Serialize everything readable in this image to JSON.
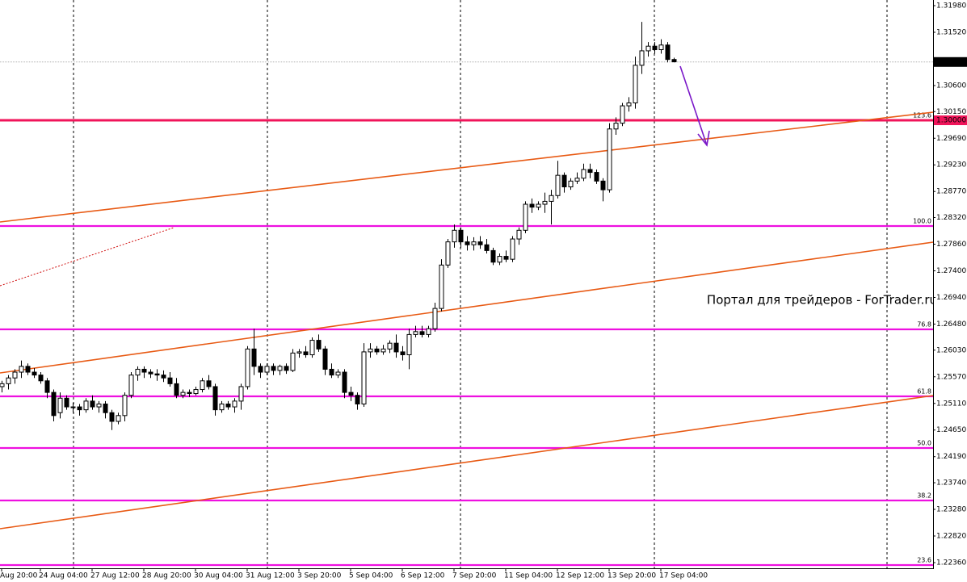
{
  "chart_data": {
    "type": "candlestick",
    "ylim": [
      1.2236,
      1.3198
    ],
    "yticks": [
      {
        "value": 1.3198,
        "label": "1.31980"
      },
      {
        "value": 1.3152,
        "label": "1.31520"
      },
      {
        "value": 1.306,
        "label": "1.30600"
      },
      {
        "value": 1.3015,
        "label": "1.30150"
      },
      {
        "value": 1.2969,
        "label": "1.29690"
      },
      {
        "value": 1.2923,
        "label": "1.29230"
      },
      {
        "value": 1.2877,
        "label": "1.28770"
      },
      {
        "value": 1.2832,
        "label": "1.28320"
      },
      {
        "value": 1.2786,
        "label": "1.27860"
      },
      {
        "value": 1.274,
        "label": "1.27400"
      },
      {
        "value": 1.2694,
        "label": "1.26940"
      },
      {
        "value": 1.2648,
        "label": "1.26480"
      },
      {
        "value": 1.2603,
        "label": "1.26030"
      },
      {
        "value": 1.2557,
        "label": "1.25570"
      },
      {
        "value": 1.2511,
        "label": "1.25110"
      },
      {
        "value": 1.2465,
        "label": "1.24650"
      },
      {
        "value": 1.2419,
        "label": "1.24190"
      },
      {
        "value": 1.2374,
        "label": "1.23740"
      },
      {
        "value": 1.2328,
        "label": "1.23280"
      },
      {
        "value": 1.2282,
        "label": "1.22820"
      },
      {
        "value": 1.2236,
        "label": "1.22360"
      }
    ],
    "xticks": [
      {
        "value": 0,
        "label": "Aug 20:00"
      },
      {
        "value": 6,
        "label": "24 Aug 04:00"
      },
      {
        "value": 14,
        "label": "27 Aug 12:00"
      },
      {
        "value": 22,
        "label": "28 Aug 20:00"
      },
      {
        "value": 30,
        "label": "30 Aug 04:00"
      },
      {
        "value": 38,
        "label": "31 Aug 12:00"
      },
      {
        "value": 46,
        "label": "3 Sep 20:00"
      },
      {
        "value": 54,
        "label": "5 Sep 04:00"
      },
      {
        "value": 62,
        "label": "6 Sep 12:00"
      },
      {
        "value": 70,
        "label": "7 Sep 20:00"
      },
      {
        "value": 78,
        "label": "11 Sep 04:00"
      },
      {
        "value": 86,
        "label": "12 Sep 12:00"
      },
      {
        "value": 94,
        "label": "13 Sep 20:00"
      },
      {
        "value": 102,
        "label": "17 Sep 04:00"
      }
    ],
    "last_price": {
      "value": 1.31007,
      "label": "1.31007"
    },
    "levels": [
      {
        "name": "123.6",
        "value": 1.3,
        "color": "#f0145a",
        "price_label": "1.30000"
      },
      {
        "name": "100.0",
        "value": 1.28174,
        "color": "#ee10e0"
      },
      {
        "name": "76.8",
        "value": 1.26389,
        "color": "#ee10e0"
      },
      {
        "name": "61.8",
        "value": 1.25232,
        "color": "#ee10e0"
      },
      {
        "name": "50.0",
        "value": 1.2434,
        "color": "#ee10e0"
      },
      {
        "name": "38.2",
        "value": 1.23434,
        "color": "#ee10e0"
      },
      {
        "name": "23.6",
        "value": 1.22318,
        "color": "#ee10e0"
      }
    ],
    "watermark": "Портал для трейдеров - ForTrader.ru",
    "ohlc": [
      [
        1.254,
        1.255,
        1.253,
        1.2545
      ],
      [
        1.2545,
        1.256,
        1.2535,
        1.2555
      ],
      [
        1.2555,
        1.257,
        1.2545,
        1.2565
      ],
      [
        1.2565,
        1.2585,
        1.2555,
        1.2575
      ],
      [
        1.2575,
        1.258,
        1.256,
        1.2565
      ],
      [
        1.2565,
        1.2572,
        1.2555,
        1.256
      ],
      [
        1.256,
        1.2565,
        1.2545,
        1.255
      ],
      [
        1.255,
        1.2555,
        1.252,
        1.253
      ],
      [
        1.253,
        1.2535,
        1.248,
        1.249
      ],
      [
        1.2495,
        1.253,
        1.2485,
        1.252
      ],
      [
        1.252,
        1.2525,
        1.25,
        1.2505
      ],
      [
        1.2505,
        1.2512,
        1.2495,
        1.2505
      ],
      [
        1.2505,
        1.251,
        1.249,
        1.25
      ],
      [
        1.25,
        1.252,
        1.2495,
        1.2515
      ],
      [
        1.2515,
        1.2525,
        1.25,
        1.2505
      ],
      [
        1.2505,
        1.2515,
        1.2495,
        1.251
      ],
      [
        1.251,
        1.2515,
        1.2485,
        1.2495
      ],
      [
        1.2495,
        1.25,
        1.2465,
        1.248
      ],
      [
        1.248,
        1.2495,
        1.2475,
        1.249
      ],
      [
        1.249,
        1.253,
        1.248,
        1.2525
      ],
      [
        1.2525,
        1.2565,
        1.252,
        1.256
      ],
      [
        1.256,
        1.2575,
        1.255,
        1.257
      ],
      [
        1.257,
        1.2575,
        1.2555,
        1.2565
      ],
      [
        1.2565,
        1.257,
        1.2555,
        1.2562
      ],
      [
        1.2562,
        1.257,
        1.255,
        1.256
      ],
      [
        1.256,
        1.2568,
        1.2548,
        1.2555
      ],
      [
        1.2555,
        1.2565,
        1.254,
        1.2545
      ],
      [
        1.2545,
        1.2555,
        1.252,
        1.2525
      ],
      [
        1.2525,
        1.2535,
        1.252,
        1.253
      ],
      [
        1.253,
        1.2535,
        1.2522,
        1.2528
      ],
      [
        1.2528,
        1.254,
        1.2525,
        1.2535
      ],
      [
        1.2535,
        1.2555,
        1.253,
        1.255
      ],
      [
        1.255,
        1.256,
        1.2535,
        1.254
      ],
      [
        1.254,
        1.2545,
        1.249,
        1.25
      ],
      [
        1.25,
        1.2515,
        1.2495,
        1.251
      ],
      [
        1.251,
        1.2515,
        1.25,
        1.2505
      ],
      [
        1.2505,
        1.252,
        1.2495,
        1.2515
      ],
      [
        1.2515,
        1.2545,
        1.25,
        1.254
      ],
      [
        1.254,
        1.261,
        1.2535,
        1.2605
      ],
      [
        1.2605,
        1.264,
        1.256,
        1.2575
      ],
      [
        1.2575,
        1.258,
        1.2555,
        1.2565
      ],
      [
        1.2565,
        1.258,
        1.256,
        1.2575
      ],
      [
        1.2575,
        1.258,
        1.256,
        1.2568
      ],
      [
        1.2568,
        1.2578,
        1.256,
        1.2575
      ],
      [
        1.2575,
        1.258,
        1.2562,
        1.2568
      ],
      [
        1.2568,
        1.2605,
        1.2565,
        1.2598
      ],
      [
        1.2598,
        1.2605,
        1.259,
        1.26
      ],
      [
        1.26,
        1.261,
        1.259,
        1.2595
      ],
      [
        1.2595,
        1.2625,
        1.259,
        1.262
      ],
      [
        1.262,
        1.263,
        1.26,
        1.2605
      ],
      [
        1.2605,
        1.261,
        1.256,
        1.257
      ],
      [
        1.257,
        1.258,
        1.2555,
        1.256
      ],
      [
        1.256,
        1.257,
        1.2555,
        1.2565
      ],
      [
        1.2565,
        1.257,
        1.252,
        1.253
      ],
      [
        1.253,
        1.254,
        1.2515,
        1.2525
      ],
      [
        1.2525,
        1.253,
        1.25,
        1.251
      ],
      [
        1.251,
        1.2615,
        1.2505,
        1.26
      ],
      [
        1.26,
        1.2615,
        1.259,
        1.2605
      ],
      [
        1.2605,
        1.261,
        1.2595,
        1.26
      ],
      [
        1.26,
        1.2612,
        1.2595,
        1.2605
      ],
      [
        1.2605,
        1.262,
        1.2598,
        1.2615
      ],
      [
        1.2615,
        1.263,
        1.259,
        1.26
      ],
      [
        1.26,
        1.261,
        1.2585,
        1.2595
      ],
      [
        1.2595,
        1.264,
        1.257,
        1.263
      ],
      [
        1.263,
        1.2645,
        1.2625,
        1.2635
      ],
      [
        1.2635,
        1.2645,
        1.2625,
        1.263
      ],
      [
        1.263,
        1.2645,
        1.2625,
        1.264
      ],
      [
        1.264,
        1.2685,
        1.2635,
        1.2675
      ],
      [
        1.2675,
        1.276,
        1.267,
        1.275
      ],
      [
        1.275,
        1.2795,
        1.2745,
        1.279
      ],
      [
        1.279,
        1.282,
        1.278,
        1.281
      ],
      [
        1.281,
        1.2815,
        1.278,
        1.279
      ],
      [
        1.279,
        1.28,
        1.2775,
        1.2785
      ],
      [
        1.2785,
        1.2798,
        1.2775,
        1.279
      ],
      [
        1.279,
        1.28,
        1.2778,
        1.2785
      ],
      [
        1.2785,
        1.2795,
        1.277,
        1.2775
      ],
      [
        1.2775,
        1.278,
        1.275,
        1.2755
      ],
      [
        1.2755,
        1.277,
        1.275,
        1.2765
      ],
      [
        1.2765,
        1.2775,
        1.2755,
        1.276
      ],
      [
        1.276,
        1.28,
        1.2755,
        1.2795
      ],
      [
        1.2795,
        1.2815,
        1.2785,
        1.281
      ],
      [
        1.281,
        1.286,
        1.2805,
        1.2855
      ],
      [
        1.2855,
        1.2865,
        1.284,
        1.285
      ],
      [
        1.285,
        1.286,
        1.2845,
        1.2855
      ],
      [
        1.2855,
        1.2875,
        1.284,
        1.286
      ],
      [
        1.286,
        1.288,
        1.282,
        1.287
      ],
      [
        1.287,
        1.293,
        1.2865,
        1.2905
      ],
      [
        1.2905,
        1.291,
        1.2875,
        1.2885
      ],
      [
        1.2885,
        1.29,
        1.288,
        1.2895
      ],
      [
        1.2895,
        1.291,
        1.289,
        1.29
      ],
      [
        1.29,
        1.2925,
        1.2895,
        1.2915
      ],
      [
        1.2915,
        1.2925,
        1.29,
        1.291
      ],
      [
        1.291,
        1.2915,
        1.289,
        1.2895
      ],
      [
        1.2895,
        1.29,
        1.286,
        1.288
      ],
      [
        1.288,
        1.2995,
        1.2875,
        1.2985
      ],
      [
        1.2985,
        1.3005,
        1.2975,
        1.2995
      ],
      [
        1.2995,
        1.303,
        1.299,
        1.3025
      ],
      [
        1.3025,
        1.304,
        1.3015,
        1.303
      ],
      [
        1.303,
        1.311,
        1.302,
        1.3095
      ],
      [
        1.3095,
        1.317,
        1.308,
        1.312
      ],
      [
        1.312,
        1.3135,
        1.311,
        1.3128
      ],
      [
        1.3128,
        1.3135,
        1.3115,
        1.3122
      ],
      [
        1.3122,
        1.314,
        1.3115,
        1.313
      ],
      [
        1.313,
        1.3135,
        1.31,
        1.3105
      ],
      [
        1.3105,
        1.3108,
        1.31,
        1.3101
      ]
    ]
  }
}
